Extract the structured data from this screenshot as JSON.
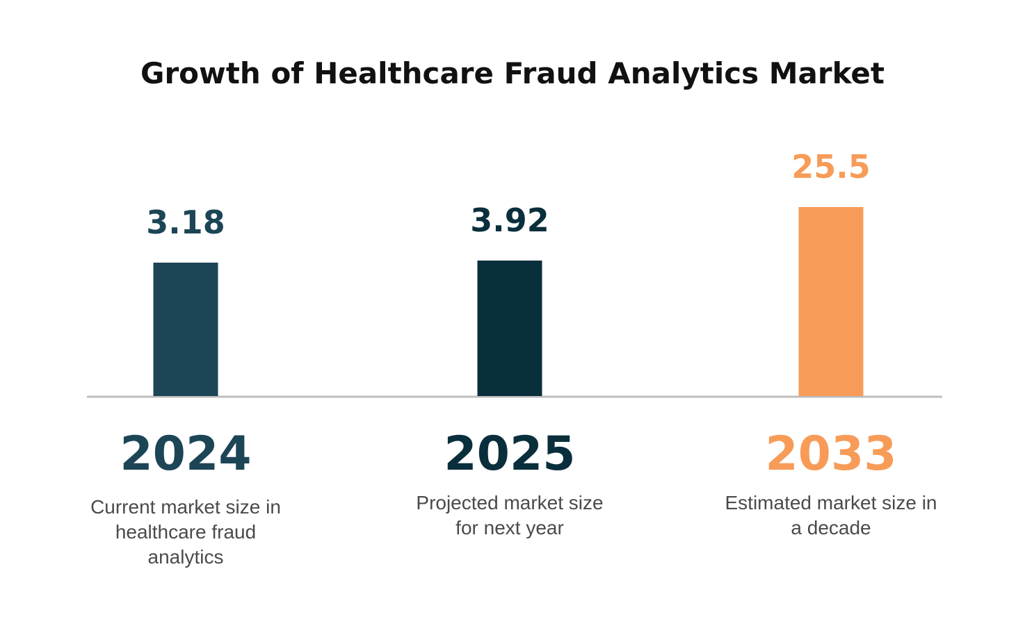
{
  "chart_data": {
    "type": "bar",
    "title": "Growth of Healthcare Fraud Analytics Market",
    "categories": [
      "2024",
      "2025",
      "2033"
    ],
    "values": [
      3.18,
      3.92,
      25.5
    ],
    "value_labels": [
      "3.18",
      "3.92",
      "25.5"
    ],
    "descriptions": [
      [
        "Current market size in",
        "healthcare fraud",
        "analytics"
      ],
      [
        "Projected market size",
        "for next year"
      ],
      [
        "Estimated market size in",
        "a decade"
      ]
    ],
    "colors": [
      "#1c4556",
      "#0a2f3c",
      "#f79c58"
    ],
    "baseline_color": "#bdbdbd",
    "grid": false,
    "legend": "none"
  }
}
